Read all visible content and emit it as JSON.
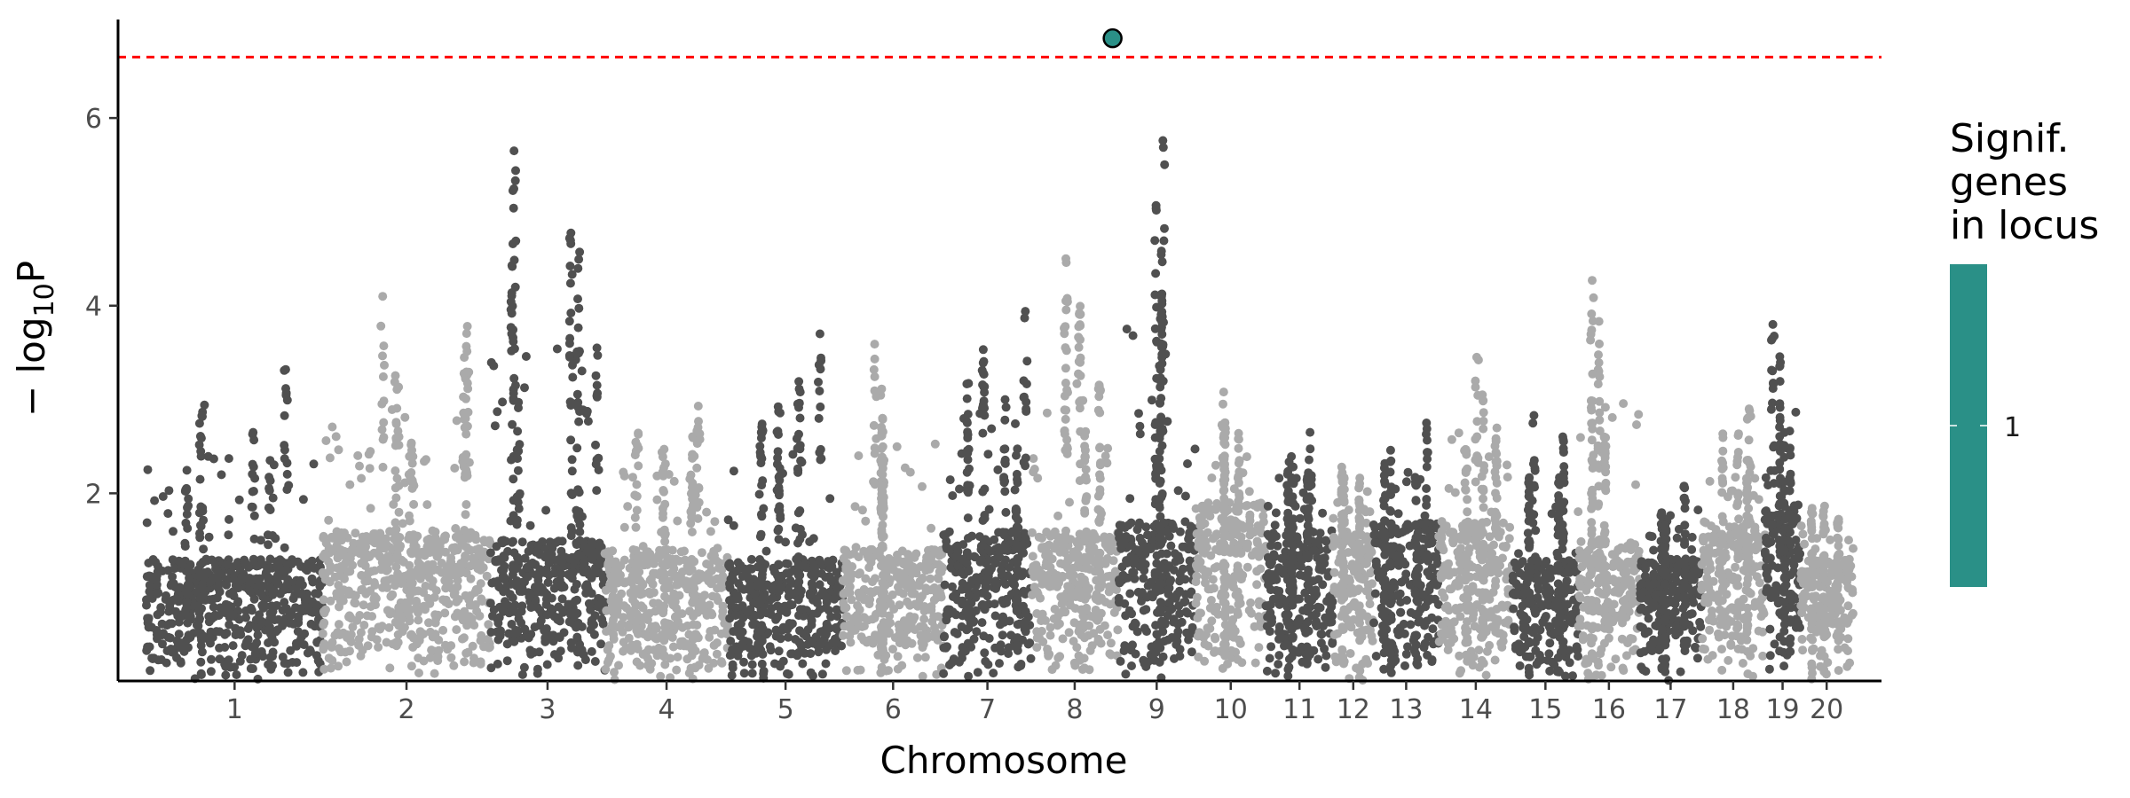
{
  "chart_data": {
    "type": "scatter",
    "title": "",
    "xlabel": "Chromosome",
    "ylabel": "−log10P",
    "ylabel_parts": {
      "prefix": "− log",
      "subscript": "10",
      "suffix": "P"
    },
    "ylim": [
      0,
      7.05
    ],
    "yticks": [
      2,
      4,
      6
    ],
    "grid": false,
    "colors": {
      "odd_chromosome": "#505050",
      "even_chromosome": "#aaaaaa",
      "threshold_line": "#ff0000",
      "significant": "#2a9087",
      "axis": "#000000"
    },
    "threshold": {
      "value": 6.65,
      "style": "dashed"
    },
    "chromosomes": [
      {
        "label": "1",
        "span": [
          0,
          1000
        ],
        "max": 3.3,
        "bulk": 1.3
      },
      {
        "label": "2",
        "span": [
          1000,
          1950
        ],
        "max": 4.1,
        "bulk": 1.6
      },
      {
        "label": "3",
        "span": [
          1950,
          2600
        ],
        "max": 5.65,
        "bulk": 1.5
      },
      {
        "label": "4",
        "span": [
          2600,
          3300
        ],
        "max": 2.95,
        "bulk": 1.4
      },
      {
        "label": "5",
        "span": [
          3300,
          3950
        ],
        "max": 3.7,
        "bulk": 1.3
      },
      {
        "label": "6",
        "span": [
          3950,
          4520
        ],
        "max": 3.6,
        "bulk": 1.4
      },
      {
        "label": "7",
        "span": [
          4520,
          5020
        ],
        "max": 3.95,
        "bulk": 1.6
      },
      {
        "label": "8",
        "span": [
          5020,
          5510
        ],
        "max": 4.5,
        "bulk": 1.6
      },
      {
        "label": "9",
        "span": [
          5510,
          5950
        ],
        "max": 5.75,
        "bulk": 1.7
      },
      {
        "label": "10",
        "span": [
          5950,
          6350
        ],
        "max": 3.1,
        "bulk": 1.9
      },
      {
        "label": "11",
        "span": [
          6350,
          6730
        ],
        "max": 2.65,
        "bulk": 1.6
      },
      {
        "label": "12",
        "span": [
          6730,
          6960
        ],
        "max": 2.4,
        "bulk": 1.6
      },
      {
        "label": "13",
        "span": [
          6960,
          7330
        ],
        "max": 2.75,
        "bulk": 1.7
      },
      {
        "label": "14",
        "span": [
          7330,
          7750
        ],
        "max": 3.45,
        "bulk": 1.7
      },
      {
        "label": "15",
        "span": [
          7750,
          8120
        ],
        "max": 2.85,
        "bulk": 1.3
      },
      {
        "label": "16",
        "span": [
          8120,
          8470
        ],
        "max": 4.25,
        "bulk": 1.5
      },
      {
        "label": "17",
        "span": [
          8470,
          8820
        ],
        "max": 2.3,
        "bulk": 1.3
      },
      {
        "label": "18",
        "span": [
          8820,
          9180
        ],
        "max": 2.9,
        "bulk": 1.7
      },
      {
        "label": "19",
        "span": [
          9180,
          9380
        ],
        "max": 3.8,
        "bulk": 1.9
      },
      {
        "label": "20",
        "span": [
          9380,
          9680
        ],
        "max": 2.05,
        "bulk": 1.3
      }
    ],
    "notable_points": [
      {
        "chromosome": "1",
        "x": 790,
        "y": 3.32
      },
      {
        "chromosome": "1",
        "x": 605,
        "y": 2.65
      },
      {
        "chromosome": "2",
        "x": 1340,
        "y": 4.1
      },
      {
        "chromosome": "2",
        "x": 1820,
        "y": 3.78
      },
      {
        "chromosome": "3",
        "x": 2085,
        "y": 5.65
      },
      {
        "chromosome": "3",
        "x": 2110,
        "y": 2.97
      },
      {
        "chromosome": "3",
        "x": 2555,
        "y": 3.55
      },
      {
        "chromosome": "4",
        "x": 3130,
        "y": 2.93
      },
      {
        "chromosome": "5",
        "x": 3820,
        "y": 3.7
      },
      {
        "chromosome": "6",
        "x": 4130,
        "y": 3.59
      },
      {
        "chromosome": "7",
        "x": 4985,
        "y": 3.94
      },
      {
        "chromosome": "7",
        "x": 4870,
        "y": 3.0
      },
      {
        "chromosome": "8",
        "x": 5215,
        "y": 4.5
      },
      {
        "chromosome": "8",
        "x": 5215,
        "y": 4.05
      },
      {
        "chromosome": "9",
        "x": 5765,
        "y": 5.76
      },
      {
        "chromosome": "9",
        "x": 5760,
        "y": 4.02
      },
      {
        "chromosome": "10",
        "x": 6110,
        "y": 3.08
      },
      {
        "chromosome": "11",
        "x": 6600,
        "y": 2.65
      },
      {
        "chromosome": "13",
        "x": 7260,
        "y": 2.75
      },
      {
        "chromosome": "14",
        "x": 7545,
        "y": 3.45
      },
      {
        "chromosome": "15",
        "x": 7870,
        "y": 2.83
      },
      {
        "chromosome": "16",
        "x": 8200,
        "y": 4.27
      },
      {
        "chromosome": "18",
        "x": 9090,
        "y": 2.9
      },
      {
        "chromosome": "19",
        "x": 9225,
        "y": 3.8
      }
    ],
    "significant_point": {
      "chromosome": "8",
      "x": 5480,
      "y": 6.85,
      "genes_in_locus": 1
    },
    "legend": {
      "title_lines": [
        "Signif.",
        "genes",
        "in locus"
      ],
      "label": "1",
      "color": "#2a9087",
      "placement": "right"
    }
  }
}
